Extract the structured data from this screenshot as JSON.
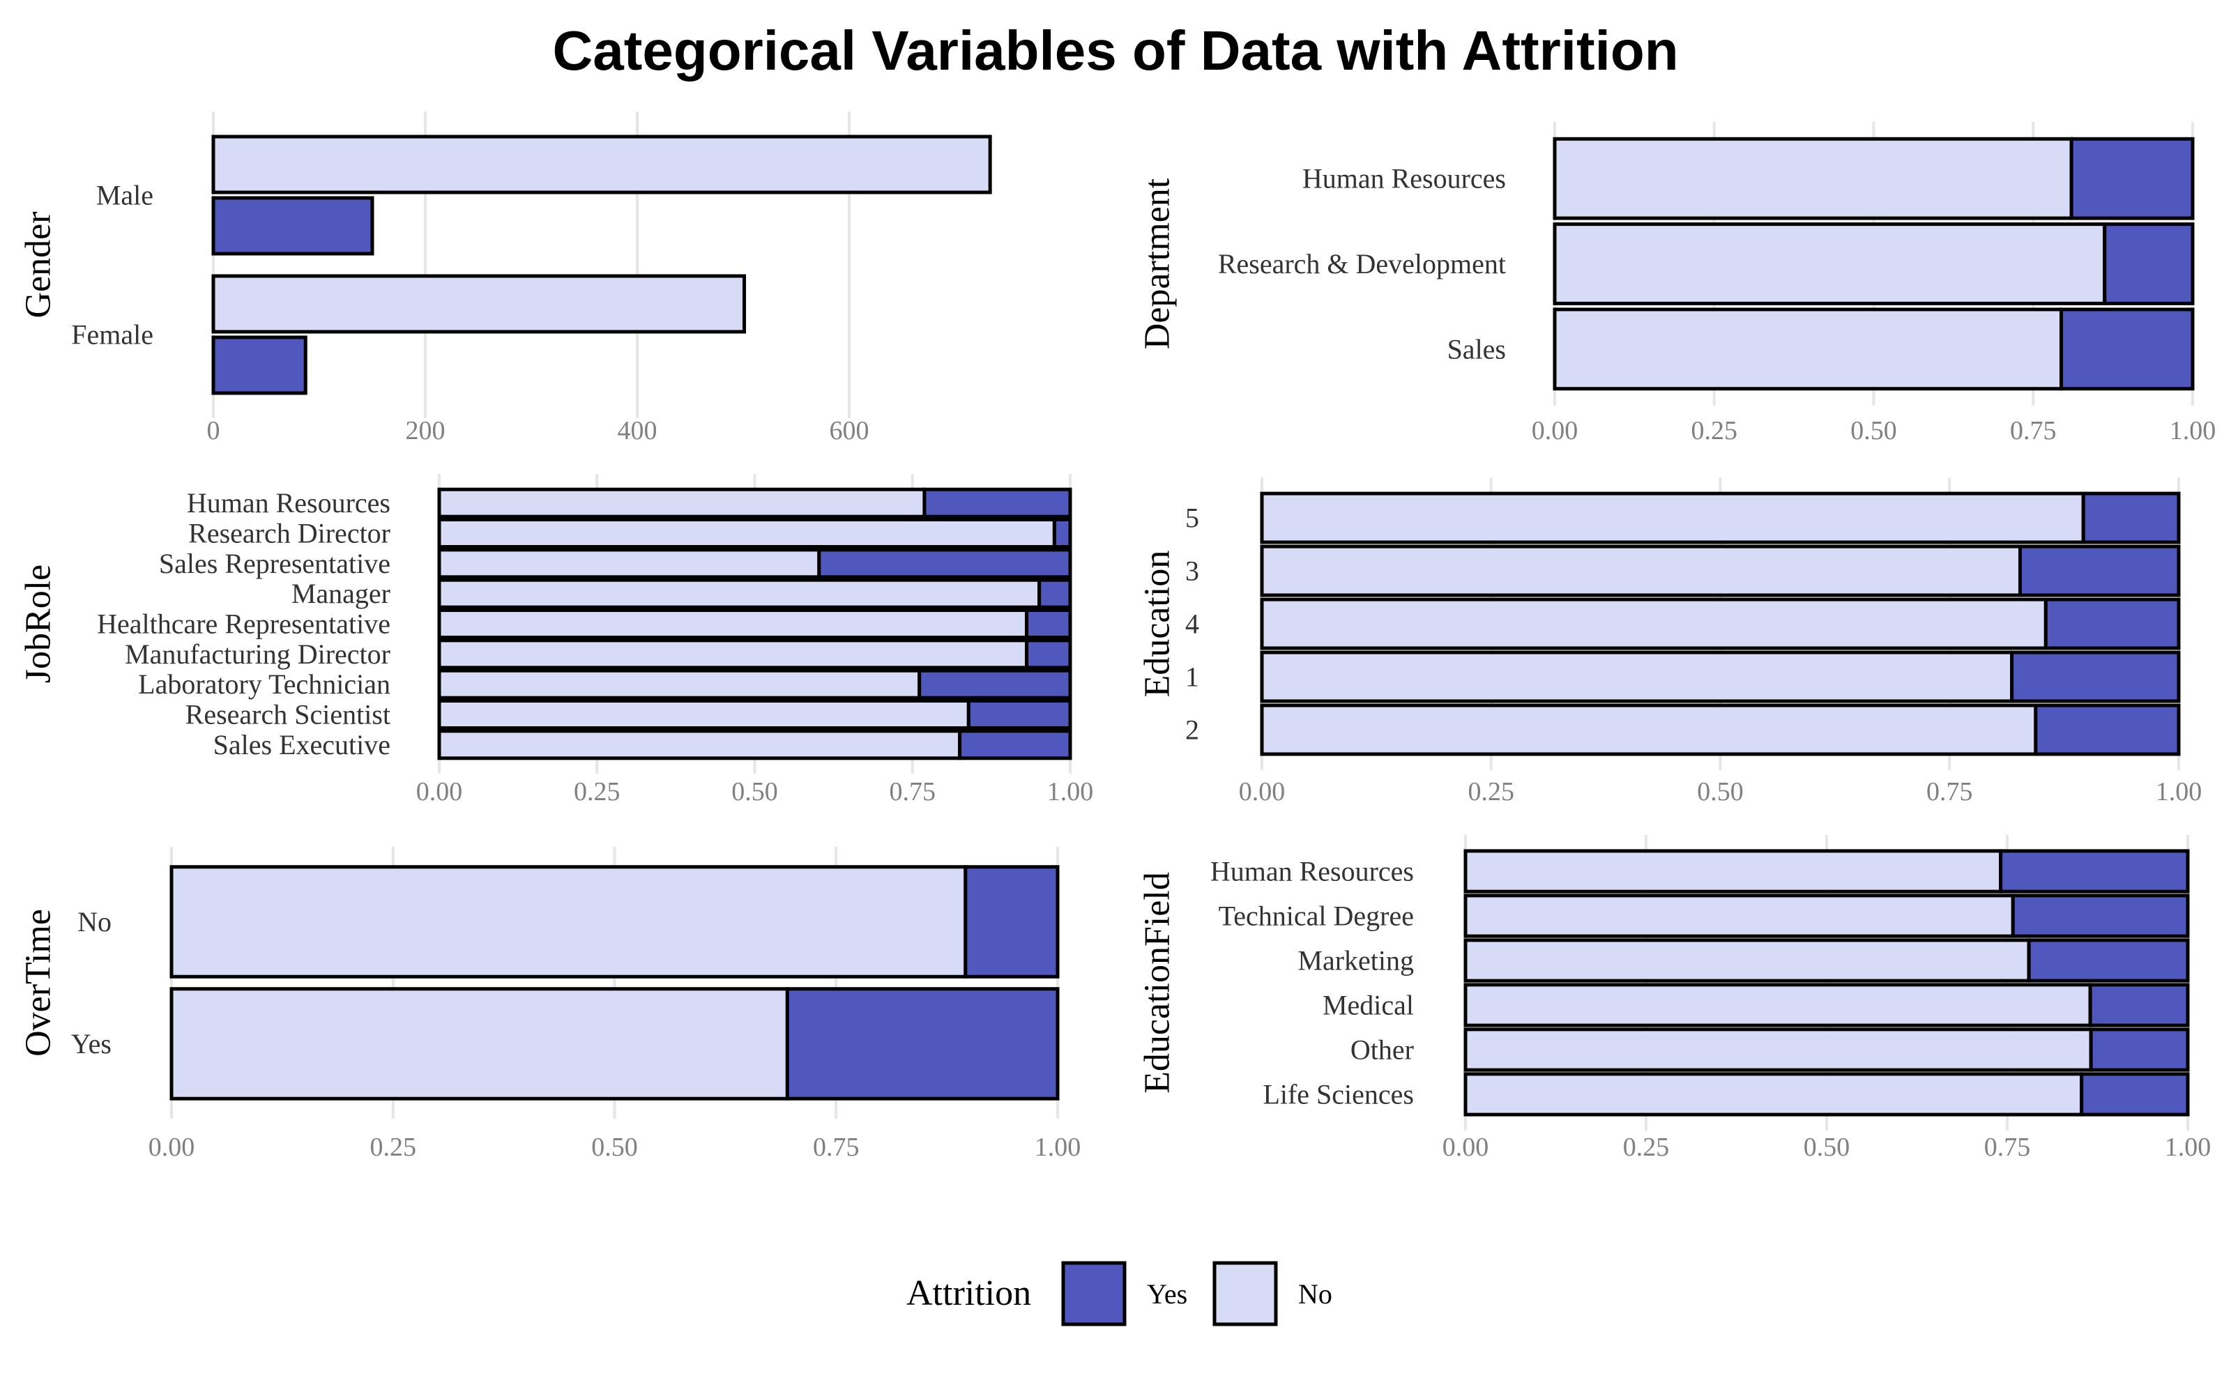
{
  "title": "Categorical Variables of Data with Attrition",
  "colors": {
    "yes": "#5058BD",
    "no": "#D8DBF5",
    "outline": "#000000"
  },
  "legend": {
    "title": "Attrition",
    "items": [
      {
        "key": "yes",
        "label": "Yes"
      },
      {
        "key": "no",
        "label": "No"
      }
    ],
    "placement": "bottom-center"
  },
  "chart_data": [
    {
      "id": "gender",
      "type": "bar",
      "orientation": "horizontal",
      "position": "dodge",
      "ylabel": "Gender",
      "categories": [
        "Male",
        "Female"
      ],
      "series": [
        {
          "name": "No",
          "values": [
            733,
            501
          ]
        },
        {
          "name": "Yes",
          "values": [
            150,
            87
          ]
        }
      ],
      "xlim": [
        0,
        800
      ],
      "xticks": [
        0,
        200,
        400,
        600
      ],
      "grid": true
    },
    {
      "id": "department",
      "type": "bar",
      "orientation": "horizontal",
      "position": "fill",
      "ylabel": "Department",
      "categories": [
        "Human Resources",
        "Research & Development",
        "Sales"
      ],
      "no_fraction": [
        0.81,
        0.862,
        0.794
      ],
      "xlim": [
        0,
        1
      ],
      "xticks": [
        "0.00",
        "0.25",
        "0.50",
        "0.75",
        "1.00"
      ],
      "grid": true
    },
    {
      "id": "jobrole",
      "type": "bar",
      "orientation": "horizontal",
      "position": "fill",
      "ylabel": "JobRole",
      "categories": [
        "Human Resources",
        "Research Director",
        "Sales Representative",
        "Manager",
        "Healthcare Representative",
        "Manufacturing Director",
        "Laboratory Technician",
        "Research Scientist",
        "Sales Executive"
      ],
      "no_fraction": [
        0.769,
        0.975,
        0.602,
        0.951,
        0.931,
        0.931,
        0.761,
        0.839,
        0.825
      ],
      "xlim": [
        0,
        1
      ],
      "xticks": [
        "0.00",
        "0.25",
        "0.50",
        "0.75",
        "1.00"
      ],
      "grid": true
    },
    {
      "id": "education",
      "type": "bar",
      "orientation": "horizontal",
      "position": "fill",
      "ylabel": "Education",
      "categories": [
        "5",
        "3",
        "4",
        "1",
        "2"
      ],
      "no_fraction": [
        0.896,
        0.827,
        0.855,
        0.818,
        0.844
      ],
      "xlim": [
        0,
        1
      ],
      "xticks": [
        "0.00",
        "0.25",
        "0.50",
        "0.75",
        "1.00"
      ],
      "grid": true
    },
    {
      "id": "overtime",
      "type": "bar",
      "orientation": "horizontal",
      "position": "fill",
      "ylabel": "OverTime",
      "categories": [
        "No",
        "Yes"
      ],
      "no_fraction": [
        0.896,
        0.695
      ],
      "xlim": [
        0,
        1
      ],
      "xticks": [
        "0.00",
        "0.25",
        "0.50",
        "0.75",
        "1.00"
      ],
      "grid": true
    },
    {
      "id": "educationfield",
      "type": "bar",
      "orientation": "horizontal",
      "position": "fill",
      "ylabel": "EducationField",
      "categories": [
        "Human Resources",
        "Technical Degree",
        "Marketing",
        "Medical",
        "Other",
        "Life Sciences"
      ],
      "no_fraction": [
        0.741,
        0.758,
        0.78,
        0.865,
        0.866,
        0.853
      ],
      "xlim": [
        0,
        1
      ],
      "xticks": [
        "0.00",
        "0.25",
        "0.50",
        "0.75",
        "1.00"
      ],
      "grid": true
    }
  ]
}
